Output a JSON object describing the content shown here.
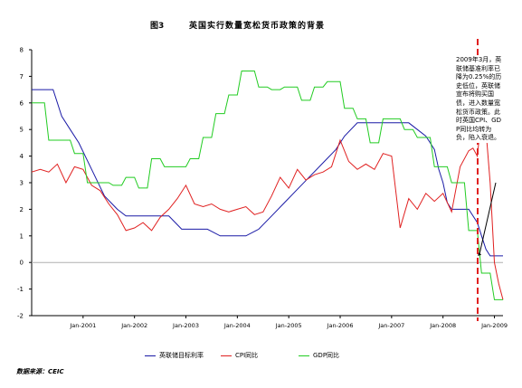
{
  "header": {
    "figure_label": "图3",
    "title": "英国实行数量宽松货币政策的背景"
  },
  "source": "数据来源：CEIC",
  "annotation": "2009年3月，英联储基准利率已降为0.25%的历史低位，英联储宣布将购买国债，进入数量宽松货币政策。此时英国CPI、GDP同比均转为负，陷入衰退。",
  "colors": {
    "rate": "#1a1aa6",
    "cpi": "#e02020",
    "gdp": "#22cc22",
    "marker": "#e02020",
    "axis": "#000000",
    "zero_line": "#b0b0b0"
  },
  "chart_data": {
    "type": "line",
    "title": "英国实行数量宽松货币政策的背景",
    "xlabel": "",
    "ylabel": "",
    "ylim": [
      -2,
      8
    ],
    "yticks": [
      -2,
      -1,
      0,
      1,
      2,
      3,
      4,
      5,
      6,
      7,
      8
    ],
    "xlim": [
      "2000-01",
      "2009-03"
    ],
    "xticks": [
      {
        "date": "2001-01",
        "label": "Jan-2001"
      },
      {
        "date": "2002-01",
        "label": "Jan-2002"
      },
      {
        "date": "2003-01",
        "label": "Jan-2003"
      },
      {
        "date": "2004-01",
        "label": "Jan-2004"
      },
      {
        "date": "2005-01",
        "label": "Jan-2005"
      },
      {
        "date": "2006-01",
        "label": "Jan-2006"
      },
      {
        "date": "2007-01",
        "label": "Jan-2007"
      },
      {
        "date": "2008-01",
        "label": "Jan-2008"
      },
      {
        "date": "2009-01",
        "label": "Jan-2009"
      }
    ],
    "legend_position": "bottom",
    "grid": false,
    "marker_line": {
      "date": "2009-03",
      "style": "dashed"
    },
    "series": [
      {
        "name": "英联储目标利率",
        "color": "#1a1aa6",
        "points": [
          [
            "2000-01",
            6.5
          ],
          [
            "2000-06",
            6.5
          ],
          [
            "2000-08",
            5.5
          ],
          [
            "2000-10",
            5.0
          ],
          [
            "2000-12",
            4.5
          ],
          [
            "2001-03",
            3.5
          ],
          [
            "2001-06",
            2.5
          ],
          [
            "2001-09",
            2.0
          ],
          [
            "2001-11",
            1.75
          ],
          [
            "2002-06",
            1.75
          ],
          [
            "2002-09",
            1.75
          ],
          [
            "2002-12",
            1.25
          ],
          [
            "2003-06",
            1.25
          ],
          [
            "2003-09",
            1.0
          ],
          [
            "2004-03",
            1.0
          ],
          [
            "2004-06",
            1.25
          ],
          [
            "2004-09",
            1.75
          ],
          [
            "2004-12",
            2.25
          ],
          [
            "2005-03",
            2.75
          ],
          [
            "2005-06",
            3.25
          ],
          [
            "2005-09",
            3.75
          ],
          [
            "2005-12",
            4.25
          ],
          [
            "2006-02",
            4.75
          ],
          [
            "2006-05",
            5.25
          ],
          [
            "2006-09",
            5.25
          ],
          [
            "2006-12",
            5.25
          ],
          [
            "2007-03",
            5.25
          ],
          [
            "2007-05",
            5.25
          ],
          [
            "2007-07",
            5.0
          ],
          [
            "2007-09",
            4.75
          ],
          [
            "2007-10",
            4.5
          ],
          [
            "2007-11",
            4.25
          ],
          [
            "2007-12",
            3.5
          ],
          [
            "2008-01",
            3.0
          ],
          [
            "2008-02",
            2.25
          ],
          [
            "2008-03",
            2.0
          ],
          [
            "2008-05",
            2.0
          ],
          [
            "2008-07",
            2.0
          ],
          [
            "2008-09",
            1.5
          ],
          [
            "2008-10",
            1.0
          ],
          [
            "2008-11",
            0.5
          ],
          [
            "2008-12",
            0.25
          ],
          [
            "2009-01",
            0.25
          ],
          [
            "2009-03",
            0.25
          ]
        ]
      },
      {
        "name": "CPI同比",
        "color": "#e02020",
        "points": [
          [
            "2000-01",
            3.4
          ],
          [
            "2000-03",
            3.5
          ],
          [
            "2000-05",
            3.4
          ],
          [
            "2000-07",
            3.7
          ],
          [
            "2000-09",
            3.0
          ],
          [
            "2000-11",
            3.6
          ],
          [
            "2001-01",
            3.5
          ],
          [
            "2001-03",
            2.9
          ],
          [
            "2001-05",
            2.7
          ],
          [
            "2001-07",
            2.2
          ],
          [
            "2001-09",
            1.8
          ],
          [
            "2001-11",
            1.2
          ],
          [
            "2002-01",
            1.3
          ],
          [
            "2002-03",
            1.5
          ],
          [
            "2002-05",
            1.2
          ],
          [
            "2002-07",
            1.7
          ],
          [
            "2002-09",
            2.0
          ],
          [
            "2002-11",
            2.4
          ],
          [
            "2003-01",
            2.9
          ],
          [
            "2003-03",
            2.2
          ],
          [
            "2003-05",
            2.1
          ],
          [
            "2003-07",
            2.2
          ],
          [
            "2003-09",
            2.0
          ],
          [
            "2003-11",
            1.9
          ],
          [
            "2004-01",
            2.0
          ],
          [
            "2004-03",
            2.1
          ],
          [
            "2004-05",
            1.8
          ],
          [
            "2004-07",
            1.9
          ],
          [
            "2004-09",
            2.5
          ],
          [
            "2004-11",
            3.2
          ],
          [
            "2005-01",
            2.8
          ],
          [
            "2005-03",
            3.5
          ],
          [
            "2005-05",
            3.1
          ],
          [
            "2005-07",
            3.3
          ],
          [
            "2005-09",
            3.4
          ],
          [
            "2005-11",
            3.6
          ],
          [
            "2006-01",
            4.6
          ],
          [
            "2006-03",
            3.8
          ],
          [
            "2006-05",
            3.5
          ],
          [
            "2006-07",
            3.7
          ],
          [
            "2006-09",
            3.5
          ],
          [
            "2006-11",
            4.1
          ],
          [
            "2007-01",
            4.0
          ],
          [
            "2007-03",
            1.3
          ],
          [
            "2007-05",
            2.4
          ],
          [
            "2007-07",
            2.0
          ],
          [
            "2007-09",
            2.6
          ],
          [
            "2007-11",
            2.3
          ],
          [
            "2008-01",
            2.6
          ],
          [
            "2008-03",
            1.9
          ],
          [
            "2008-05",
            3.6
          ],
          [
            "2008-07",
            4.2
          ],
          [
            "2008-08",
            4.3
          ],
          [
            "2008-09",
            4.0
          ],
          [
            "2008-10",
            5.5
          ],
          [
            "2008-11",
            5.0
          ],
          [
            "2008-12",
            3.0
          ],
          [
            "2009-01",
            0.0
          ],
          [
            "2009-02",
            -0.8
          ],
          [
            "2009-03",
            -1.4
          ]
        ]
      },
      {
        "name": "GDP同比",
        "color": "#22cc22",
        "points": [
          [
            "2000-01",
            6.0
          ],
          [
            "2000-04",
            6.0
          ],
          [
            "2000-05",
            4.6
          ],
          [
            "2000-10",
            4.6
          ],
          [
            "2000-11",
            4.1
          ],
          [
            "2001-01",
            4.1
          ],
          [
            "2001-02",
            3.0
          ],
          [
            "2001-07",
            3.0
          ],
          [
            "2001-08",
            2.9
          ],
          [
            "2001-10",
            2.9
          ],
          [
            "2001-11",
            3.2
          ],
          [
            "2002-01",
            3.2
          ],
          [
            "2002-02",
            2.8
          ],
          [
            "2002-04",
            2.8
          ],
          [
            "2002-05",
            3.9
          ],
          [
            "2002-07",
            3.9
          ],
          [
            "2002-08",
            3.6
          ],
          [
            "2003-01",
            3.6
          ],
          [
            "2003-02",
            3.9
          ],
          [
            "2003-04",
            3.9
          ],
          [
            "2003-05",
            4.7
          ],
          [
            "2003-07",
            4.7
          ],
          [
            "2003-08",
            5.6
          ],
          [
            "2003-10",
            5.6
          ],
          [
            "2003-11",
            6.3
          ],
          [
            "2004-01",
            6.3
          ],
          [
            "2004-02",
            7.2
          ],
          [
            "2004-05",
            7.2
          ],
          [
            "2004-06",
            6.6
          ],
          [
            "2004-08",
            6.6
          ],
          [
            "2004-09",
            6.5
          ],
          [
            "2004-11",
            6.5
          ],
          [
            "2004-12",
            6.6
          ],
          [
            "2005-03",
            6.6
          ],
          [
            "2005-04",
            6.1
          ],
          [
            "2005-06",
            6.1
          ],
          [
            "2005-07",
            6.6
          ],
          [
            "2005-09",
            6.6
          ],
          [
            "2005-10",
            6.8
          ],
          [
            "2006-01",
            6.8
          ],
          [
            "2006-02",
            5.8
          ],
          [
            "2006-04",
            5.8
          ],
          [
            "2006-05",
            5.4
          ],
          [
            "2006-07",
            5.4
          ],
          [
            "2006-08",
            4.5
          ],
          [
            "2006-10",
            4.5
          ],
          [
            "2006-11",
            5.4
          ],
          [
            "2007-03",
            5.4
          ],
          [
            "2007-04",
            5.0
          ],
          [
            "2007-06",
            5.0
          ],
          [
            "2007-07",
            4.7
          ],
          [
            "2007-10",
            4.7
          ],
          [
            "2007-11",
            3.6
          ],
          [
            "2008-02",
            3.6
          ],
          [
            "2008-03",
            3.0
          ],
          [
            "2008-06",
            3.0
          ],
          [
            "2008-07",
            1.2
          ],
          [
            "2008-09",
            1.2
          ],
          [
            "2008-10",
            -0.4
          ],
          [
            "2008-12",
            -0.4
          ],
          [
            "2009-01",
            -1.4
          ],
          [
            "2009-03",
            -1.4
          ]
        ]
      }
    ]
  },
  "legend": [
    {
      "label": "英联储目标利率",
      "color": "#1a1aa6"
    },
    {
      "label": "CPI同比",
      "color": "#e02020"
    },
    {
      "label": "GDP同比",
      "color": "#22cc22"
    }
  ]
}
